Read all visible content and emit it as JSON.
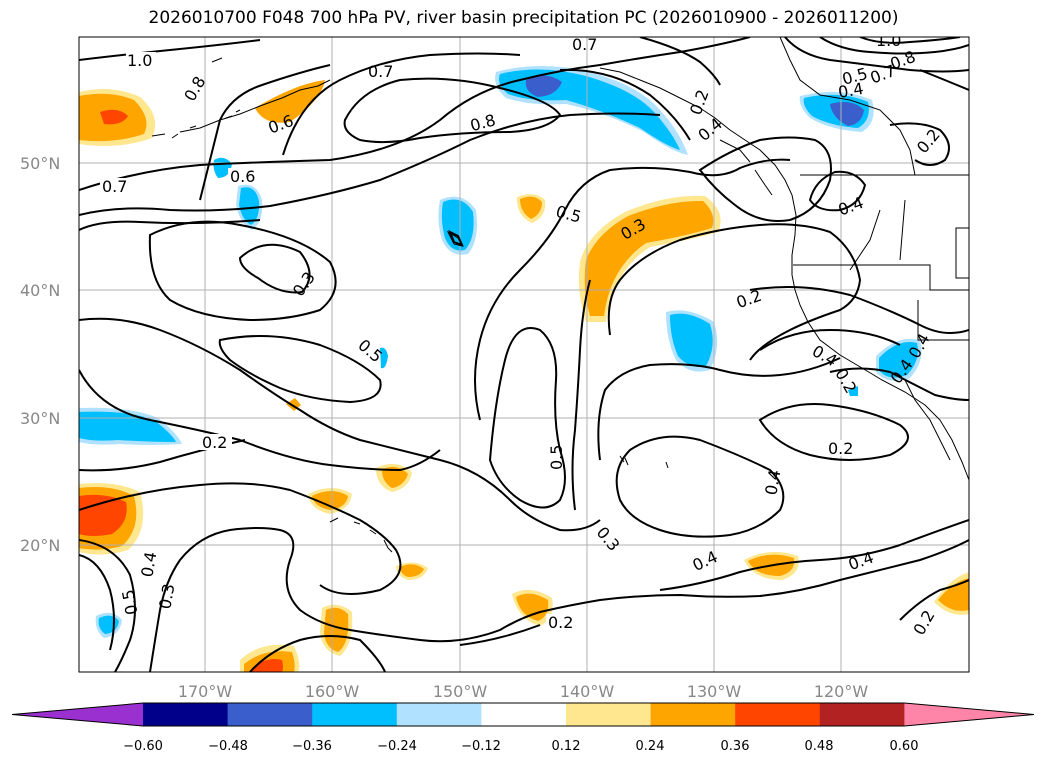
{
  "title": "2026010700 F048 700 hPa PV, river basin precipitation PC (2026010900 - 2026011200)",
  "latitude_labels": [
    "50°N",
    "40°N",
    "30°N",
    "20°N"
  ],
  "longitude_labels": [
    "170°W",
    "160°W",
    "150°W",
    "140°W",
    "130°W",
    "120°W"
  ],
  "contour_labels": [
    "1.0",
    "0.8",
    "0.7",
    "0.7",
    "0.6",
    "0.6",
    "0.7",
    "0.8",
    "0.5",
    "0.3",
    "0.3",
    "0.2",
    "0.5",
    "0.4",
    "0.2",
    "0.4",
    "0.2",
    "0.5",
    "0.3",
    "0.4",
    "0.4",
    "0.2",
    "0.2",
    "0.4",
    "0.3",
    "0.4",
    "0.5",
    "0.2",
    "1.0",
    "0.8",
    "0.7",
    "0.5",
    "0.4",
    "0.2",
    "0.4",
    "0.4",
    "0.2",
    "0.4"
  ],
  "colorbar": {
    "tick_labels": [
      "−0.60",
      "−0.48",
      "−0.36",
      "−0.24",
      "−0.12",
      "0.12",
      "0.24",
      "0.36",
      "0.48",
      "0.60"
    ],
    "colors": [
      "#9b30d0",
      "#00008b",
      "#3a5fcd",
      "#00bfff",
      "#b0e2ff",
      "#ffffff",
      "#ffe78f",
      "#ffa500",
      "#ff4500",
      "#b22222",
      "#ff85a8"
    ]
  }
}
